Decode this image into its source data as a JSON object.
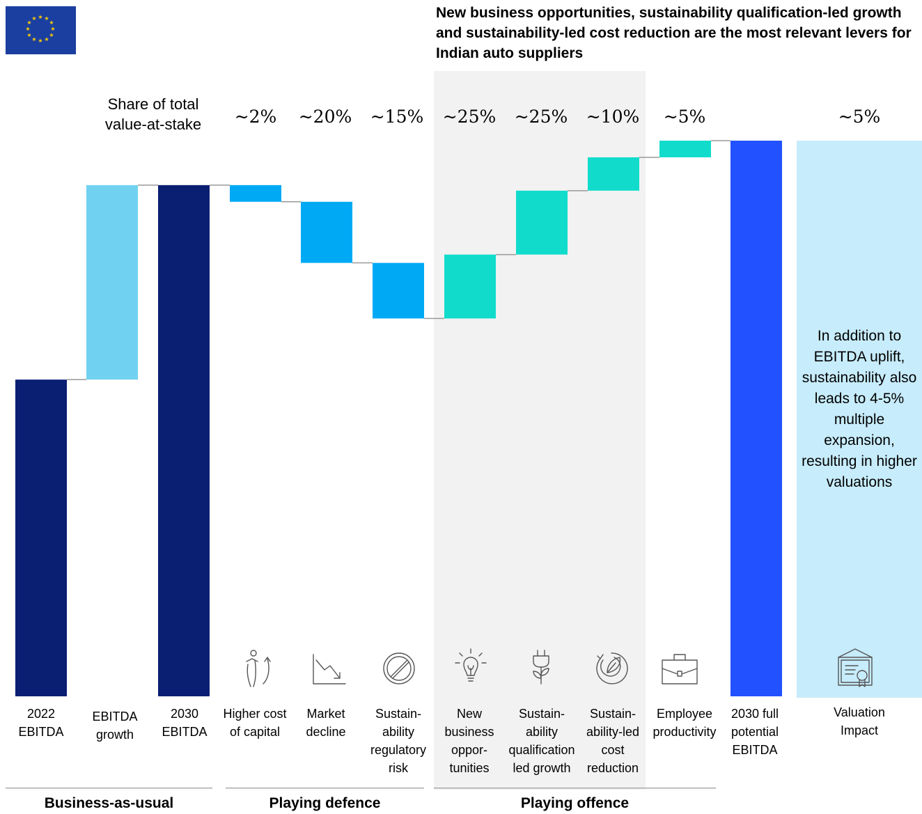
{
  "headline": "New business opportunities, sustainability qualification-led growth and sustainability-led cost reduction are the most relevant levers for Indian auto suppliers",
  "share_title": "Share of total value-at-stake",
  "share_title_line1": "Share of total",
  "share_title_line2": "value-at-stake",
  "side_note": "In addition to EBITDA uplift, sustainability also leads to 4-5% multiple expansion, resulting in higher valuations",
  "colors": {
    "total": "#0a1f72",
    "growth": "#70d2f0",
    "defence": "#00a9f4",
    "offence": "#11dccc",
    "full_potential": "#2251ff",
    "valuation_panel": "#c7ecfb",
    "offence_panel": "#f2f2f2",
    "connector": "#999999"
  },
  "sections": [
    {
      "label": "Business-as-usual"
    },
    {
      "label": "Playing defence"
    },
    {
      "label": "Playing offence"
    }
  ],
  "chart_data": {
    "type": "waterfall",
    "title": "",
    "value_axis": "relative EBITDA (no axis printed)",
    "categories": [
      "2022 EBITDA",
      "EBITDA growth",
      "2030 EBITDA",
      "Higher cost of capital",
      "Market decline",
      "Sustain-ability regulatory risk",
      "New business oppor-tunities",
      "Sustain-ability qualification led growth",
      "Sustain-ability-led cost reduction",
      "Employee productivity",
      "2030 full potential EBITDA",
      "Valuation Impact"
    ],
    "share_of_value_at_stake": [
      "",
      "",
      "",
      "~2%",
      "~20%",
      "~15%",
      "~25%",
      "~25%",
      "~10%",
      "~5%",
      "",
      "~5%"
    ],
    "bars": [
      {
        "kind": "total",
        "start": 0,
        "end": 57,
        "color_key": "total"
      },
      {
        "kind": "increase",
        "start": 57,
        "end": 92,
        "color_key": "growth"
      },
      {
        "kind": "total",
        "start": 0,
        "end": 92,
        "color_key": "total"
      },
      {
        "kind": "decrease",
        "start": 92,
        "end": 89,
        "color_key": "defence"
      },
      {
        "kind": "decrease",
        "start": 89,
        "end": 78,
        "color_key": "defence"
      },
      {
        "kind": "decrease",
        "start": 78,
        "end": 68,
        "color_key": "defence"
      },
      {
        "kind": "increase",
        "start": 68,
        "end": 79.5,
        "color_key": "offence"
      },
      {
        "kind": "increase",
        "start": 79.5,
        "end": 91,
        "color_key": "offence"
      },
      {
        "kind": "increase",
        "start": 91,
        "end": 97,
        "color_key": "offence"
      },
      {
        "kind": "increase",
        "start": 97,
        "end": 100,
        "color_key": "offence"
      },
      {
        "kind": "total",
        "start": 0,
        "end": 100,
        "color_key": "full_potential"
      },
      {
        "kind": "panel",
        "start": 0,
        "end": 100,
        "color_key": "valuation_panel"
      }
    ],
    "icons": [
      null,
      null,
      null,
      "person-arrow-icon",
      "decline-chart-icon",
      "prohibited-icon",
      "lightbulb-icon",
      "plug-plant-icon",
      "leaf-cycle-icon",
      "briefcase-icon",
      null,
      "certificate-icon"
    ],
    "grid": false,
    "legend": "none"
  }
}
